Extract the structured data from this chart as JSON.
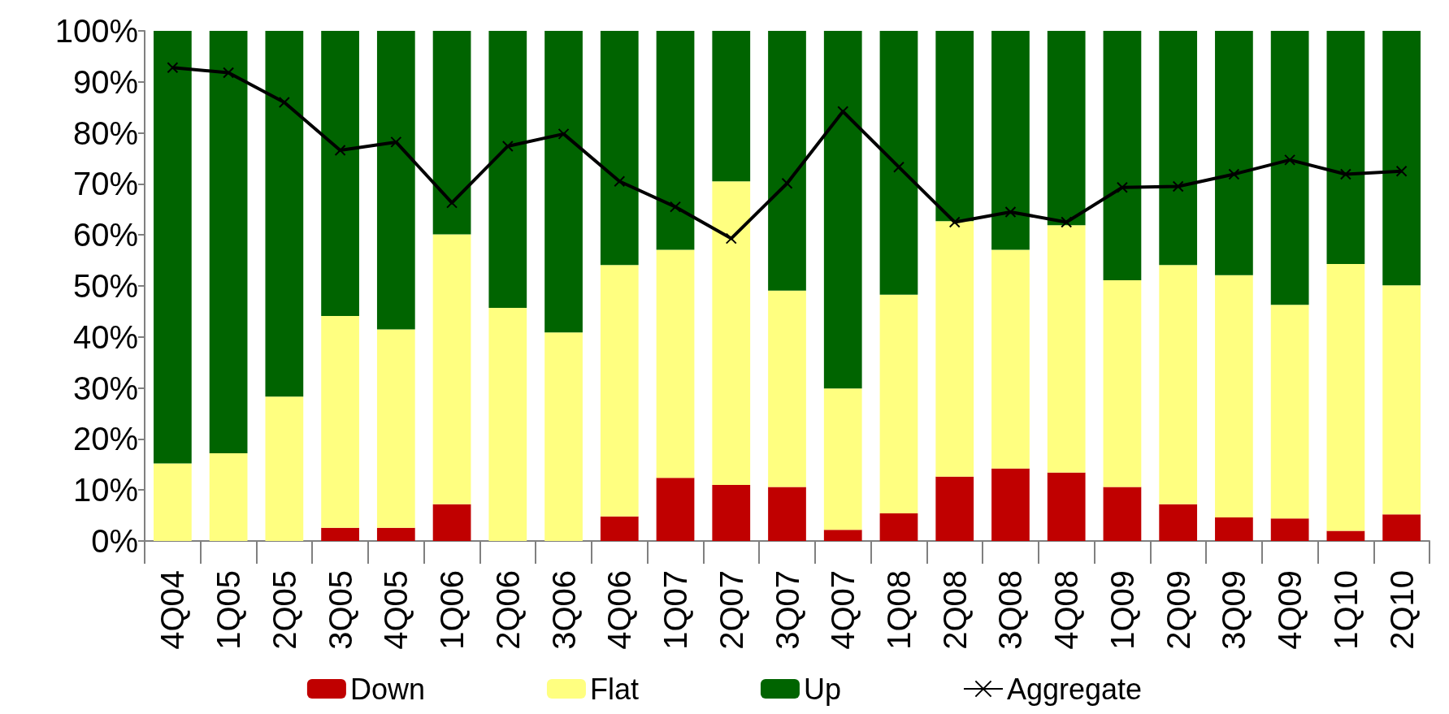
{
  "chart_data": {
    "type": "bar",
    "stacked": true,
    "categories": [
      "4Q04",
      "1Q05",
      "2Q05",
      "3Q05",
      "4Q05",
      "1Q06",
      "2Q06",
      "3Q06",
      "4Q06",
      "1Q07",
      "2Q07",
      "3Q07",
      "4Q07",
      "1Q08",
      "2Q08",
      "3Q08",
      "4Q08",
      "1Q09",
      "2Q09",
      "3Q09",
      "4Q09",
      "1Q10",
      "2Q10"
    ],
    "series": [
      {
        "name": "Down",
        "color": "#c00000",
        "values": [
          0,
          0,
          0,
          2.6,
          2.6,
          7.2,
          0,
          0,
          4.8,
          12.4,
          11,
          10.6,
          2.2,
          5.4,
          12.6,
          14.2,
          13.4,
          10.6,
          7.2,
          4.6,
          4.4,
          2,
          5.2
        ]
      },
      {
        "name": "Flat",
        "color": "#ffff80",
        "values": [
          15.2,
          17.2,
          28.3,
          41.5,
          38.9,
          52.9,
          45.7,
          40.9,
          49.3,
          44.7,
          59.5,
          38.5,
          27.7,
          42.9,
          50.1,
          42.9,
          48.5,
          40.5,
          46.9,
          47.5,
          41.9,
          52.3,
          44.9
        ]
      },
      {
        "name": "Up",
        "color": "#006400",
        "values": [
          84.8,
          82.8,
          71.7,
          55.9,
          58.5,
          39.9,
          54.3,
          59.1,
          45.9,
          42.9,
          29.5,
          50.9,
          70.1,
          51.7,
          37.3,
          42.9,
          38.1,
          48.9,
          45.9,
          47.9,
          53.7,
          45.7,
          49.9
        ]
      },
      {
        "name": "Aggregate",
        "type": "line",
        "color": "#000000",
        "marker": "cross",
        "values": [
          92.8,
          91.8,
          86,
          76.6,
          78.2,
          66.3,
          77.4,
          79.8,
          70.5,
          65.5,
          59.3,
          70.1,
          84.2,
          73.3,
          62.5,
          64.5,
          62.5,
          69.3,
          69.5,
          71.9,
          74.7,
          71.9,
          72.5
        ]
      }
    ],
    "ylim": [
      0,
      100
    ],
    "yticks": [
      {
        "value": 0,
        "label": "0%"
      },
      {
        "value": 10,
        "label": "10%"
      },
      {
        "value": 20,
        "label": "20%"
      },
      {
        "value": 30,
        "label": "30%"
      },
      {
        "value": 40,
        "label": "40%"
      },
      {
        "value": 50,
        "label": "50%"
      },
      {
        "value": 60,
        "label": "60%"
      },
      {
        "value": 70,
        "label": "70%"
      },
      {
        "value": 80,
        "label": "80%"
      },
      {
        "value": 90,
        "label": "90%"
      },
      {
        "value": 100,
        "label": "100%"
      }
    ],
    "grid": false,
    "legend": "bottom"
  }
}
